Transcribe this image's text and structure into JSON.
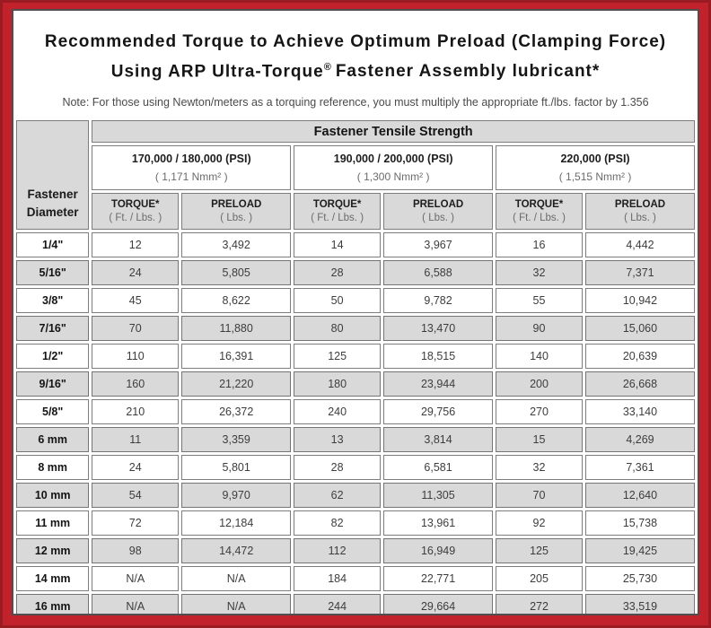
{
  "frame": {
    "red": "#c2222b",
    "inner_border": "#4f4f4f",
    "cell_gray": "#d9d9d9"
  },
  "title": {
    "line1": "Recommended Torque to Achieve Optimum Preload (Clamping Force)",
    "line2_pre": "Using ARP Ultra-Torque",
    "line2_reg": "®",
    "line2_post": "Fastener Assembly lubricant*"
  },
  "note": "Note: For those using Newton/meters as a torquing reference, you must multiply the appropriate ft./lbs. factor by 1.356",
  "table": {
    "corner_header": "Fastener\nDiameter",
    "group_header": "Fastener Tensile Strength",
    "groups": [
      {
        "psi": "170,000 / 180,000 (PSI)",
        "nmm": "( 1,171 Nmm² )"
      },
      {
        "psi": "190,000 / 200,000 (PSI)",
        "nmm": "( 1,300 Nmm² )"
      },
      {
        "psi": "220,000 (PSI)",
        "nmm": "( 1,515 Nmm² )"
      }
    ],
    "sub_headers": [
      {
        "label": "TORQUE*",
        "unit": "( Ft. / Lbs. )"
      },
      {
        "label": "PRELOAD",
        "unit": "( Lbs. )"
      },
      {
        "label": "TORQUE*",
        "unit": "( Ft. / Lbs. )"
      },
      {
        "label": "PRELOAD",
        "unit": "( Lbs. )"
      },
      {
        "label": "TORQUE*",
        "unit": "( Ft. / Lbs. )"
      },
      {
        "label": "PRELOAD",
        "unit": "( Lbs. )"
      }
    ],
    "rows": [
      {
        "d": "1/4\"",
        "v": [
          "12",
          "3,492",
          "14",
          "3,967",
          "16",
          "4,442"
        ]
      },
      {
        "d": "5/16\"",
        "v": [
          "24",
          "5,805",
          "28",
          "6,588",
          "32",
          "7,371"
        ]
      },
      {
        "d": "3/8\"",
        "v": [
          "45",
          "8,622",
          "50",
          "9,782",
          "55",
          "10,942"
        ]
      },
      {
        "d": "7/16\"",
        "v": [
          "70",
          "11,880",
          "80",
          "13,470",
          "90",
          "15,060"
        ]
      },
      {
        "d": "1/2\"",
        "v": [
          "110",
          "16,391",
          "125",
          "18,515",
          "140",
          "20,639"
        ]
      },
      {
        "d": "9/16\"",
        "v": [
          "160",
          "21,220",
          "180",
          "23,944",
          "200",
          "26,668"
        ]
      },
      {
        "d": "5/8\"",
        "v": [
          "210",
          "26,372",
          "240",
          "29,756",
          "270",
          "33,140"
        ]
      },
      {
        "d": "6 mm",
        "v": [
          "11",
          "3,359",
          "13",
          "3,814",
          "15",
          "4,269"
        ]
      },
      {
        "d": "8 mm",
        "v": [
          "24",
          "5,801",
          "28",
          "6,581",
          "32",
          "7,361"
        ]
      },
      {
        "d": "10 mm",
        "v": [
          "54",
          "9,970",
          "62",
          "11,305",
          "70",
          "12,640"
        ]
      },
      {
        "d": "11 mm",
        "v": [
          "72",
          "12,184",
          "82",
          "13,961",
          "92",
          "15,738"
        ]
      },
      {
        "d": "12 mm",
        "v": [
          "98",
          "14,472",
          "112",
          "16,949",
          "125",
          "19,425"
        ]
      },
      {
        "d": "14 mm",
        "v": [
          "N/A",
          "N/A",
          "184",
          "22,771",
          "205",
          "25,730"
        ]
      },
      {
        "d": "16 mm",
        "v": [
          "N/A",
          "N/A",
          "244",
          "29,664",
          "272",
          "33,519"
        ]
      }
    ]
  }
}
